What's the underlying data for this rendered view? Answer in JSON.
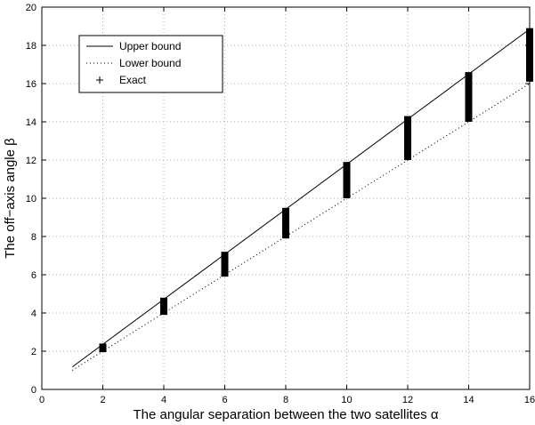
{
  "chart_data": {
    "type": "line",
    "xlabel": "The angular separation between the two satellites α",
    "ylabel": "The off−axis angle β",
    "xlim": [
      0,
      16
    ],
    "ylim": [
      0,
      20
    ],
    "xticks": [
      "0",
      "2",
      "4",
      "6",
      "8",
      "10",
      "12",
      "14",
      "16"
    ],
    "yticks": [
      "0",
      "2",
      "4",
      "6",
      "8",
      "10",
      "12",
      "14",
      "16",
      "18",
      "20"
    ],
    "grid": true,
    "legend_position": "top-left",
    "series": [
      {
        "name": "Upper bound",
        "style": "solid",
        "x": [
          1,
          16
        ],
        "y": [
          1.18,
          18.85
        ]
      },
      {
        "name": "Lower bound",
        "style": "dotted",
        "x": [
          1,
          16
        ],
        "y": [
          1.0,
          16.0
        ]
      },
      {
        "name": "Exact",
        "style": "plus",
        "x": [
          2,
          4,
          6,
          8,
          10,
          12,
          14,
          16
        ],
        "y_min": [
          1.95,
          3.9,
          5.9,
          7.9,
          10.0,
          12.0,
          14.0,
          16.1
        ],
        "y_max": [
          2.4,
          4.8,
          7.2,
          9.5,
          11.9,
          14.3,
          16.6,
          18.9
        ]
      }
    ],
    "colors": {
      "line": "#000000",
      "grid": "#b0b0b0",
      "background": "#ffffff"
    }
  }
}
